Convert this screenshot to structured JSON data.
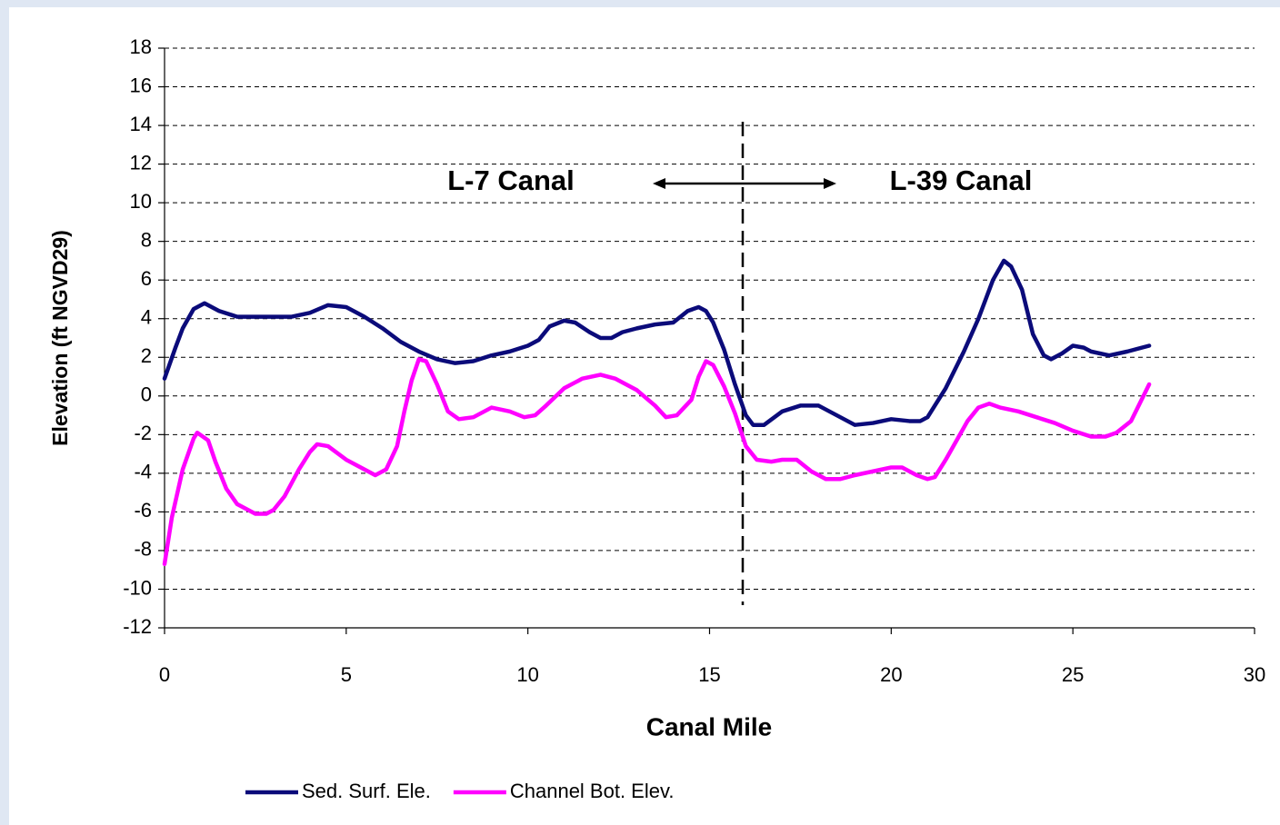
{
  "chart_data": {
    "type": "line",
    "x_label": "Canal Mile",
    "y_label": "Elevation (ft NGVD29)",
    "annotations": [
      "L-7 Canal",
      "L-39 Canal"
    ],
    "xlim": [
      0,
      30
    ],
    "xticks": [
      0,
      5,
      10,
      15,
      20,
      25,
      30
    ],
    "ylim": [
      -12,
      18
    ],
    "yticks": [
      -12,
      -10,
      -8,
      -6,
      -4,
      -2,
      0,
      2,
      4,
      6,
      8,
      10,
      12,
      14,
      16,
      18
    ],
    "grid": true,
    "legend": "bottom",
    "series": [
      {
        "name": "Sed. Surf. Ele.",
        "color": "#0b0b7a",
        "x": [
          0,
          0.3,
          0.5,
          0.8,
          1.1,
          1.5,
          2,
          3,
          3.5,
          4,
          4.5,
          5,
          5.5,
          6,
          6.5,
          7,
          7.5,
          8,
          8.5,
          9,
          9.5,
          10,
          10.3,
          10.6,
          11,
          11.3,
          11.7,
          12,
          12.3,
          12.6,
          13,
          13.5,
          14,
          14.4,
          14.7,
          14.9,
          15.1,
          15.4,
          15.7,
          16,
          16.2,
          16.5,
          17,
          17.5,
          18,
          18.5,
          19,
          19.5,
          20,
          20.5,
          20.8,
          21,
          21.5,
          22,
          22.4,
          22.8,
          23.1,
          23.3,
          23.6,
          23.9,
          24.2,
          24.4,
          24.7,
          25,
          25.3,
          25.5,
          26,
          26.5,
          27.1
        ],
        "values": [
          0.9,
          2.5,
          3.5,
          4.5,
          4.8,
          4.4,
          4.1,
          4.1,
          4.1,
          4.3,
          4.7,
          4.6,
          4.1,
          3.5,
          2.8,
          2.3,
          1.9,
          1.7,
          1.8,
          2.1,
          2.3,
          2.6,
          2.9,
          3.6,
          3.9,
          3.8,
          3.3,
          3.0,
          3.0,
          3.3,
          3.5,
          3.7,
          3.8,
          4.4,
          4.6,
          4.4,
          3.8,
          2.4,
          0.6,
          -1.0,
          -1.5,
          -1.5,
          -0.8,
          -0.5,
          -0.5,
          -1.0,
          -1.5,
          -1.4,
          -1.2,
          -1.3,
          -1.3,
          -1.1,
          0.4,
          2.3,
          4.0,
          6.0,
          7.0,
          6.7,
          5.5,
          3.2,
          2.1,
          1.9,
          2.2,
          2.6,
          2.5,
          2.3,
          2.1,
          2.3,
          2.6
        ]
      },
      {
        "name": "Channel Bot. Elev.",
        "color": "#ff00ff",
        "x": [
          0,
          0.2,
          0.5,
          0.8,
          0.9,
          1.2,
          1.4,
          1.7,
          2,
          2.5,
          2.8,
          3,
          3.3,
          3.7,
          4,
          4.2,
          4.5,
          5,
          5.5,
          5.8,
          6.1,
          6.4,
          6.6,
          6.8,
          7,
          7.2,
          7.5,
          7.8,
          8.1,
          8.5,
          9,
          9.5,
          9.9,
          10.2,
          10.5,
          11,
          11.5,
          12,
          12.4,
          13,
          13.5,
          13.8,
          14.1,
          14.5,
          14.7,
          14.9,
          15.1,
          15.4,
          15.7,
          16,
          16.3,
          16.7,
          17,
          17.4,
          17.8,
          18.2,
          18.6,
          19,
          19.5,
          20,
          20.3,
          20.7,
          21,
          21.2,
          21.5,
          21.8,
          22.1,
          22.4,
          22.7,
          23,
          23.5,
          24,
          24.5,
          25,
          25.5,
          25.9,
          26.2,
          26.6,
          27.1
        ],
        "values": [
          -8.7,
          -6.3,
          -3.8,
          -2.2,
          -1.9,
          -2.3,
          -3.4,
          -4.8,
          -5.6,
          -6.1,
          -6.1,
          -5.9,
          -5.2,
          -3.8,
          -2.9,
          -2.5,
          -2.6,
          -3.3,
          -3.8,
          -4.1,
          -3.8,
          -2.6,
          -0.8,
          0.8,
          1.9,
          1.8,
          0.6,
          -0.8,
          -1.2,
          -1.1,
          -0.6,
          -0.8,
          -1.1,
          -1.0,
          -0.5,
          0.4,
          0.9,
          1.1,
          0.9,
          0.3,
          -0.5,
          -1.1,
          -1.0,
          -0.2,
          1.0,
          1.8,
          1.6,
          0.5,
          -0.9,
          -2.6,
          -3.3,
          -3.4,
          -3.3,
          -3.3,
          -3.9,
          -4.3,
          -4.3,
          -4.1,
          -3.9,
          -3.7,
          -3.7,
          -4.1,
          -4.3,
          -4.2,
          -3.3,
          -2.3,
          -1.3,
          -0.6,
          -0.4,
          -0.6,
          -0.8,
          -1.1,
          -1.4,
          -1.8,
          -2.1,
          -2.1,
          -1.9,
          -1.3,
          0.6
        ]
      }
    ]
  }
}
